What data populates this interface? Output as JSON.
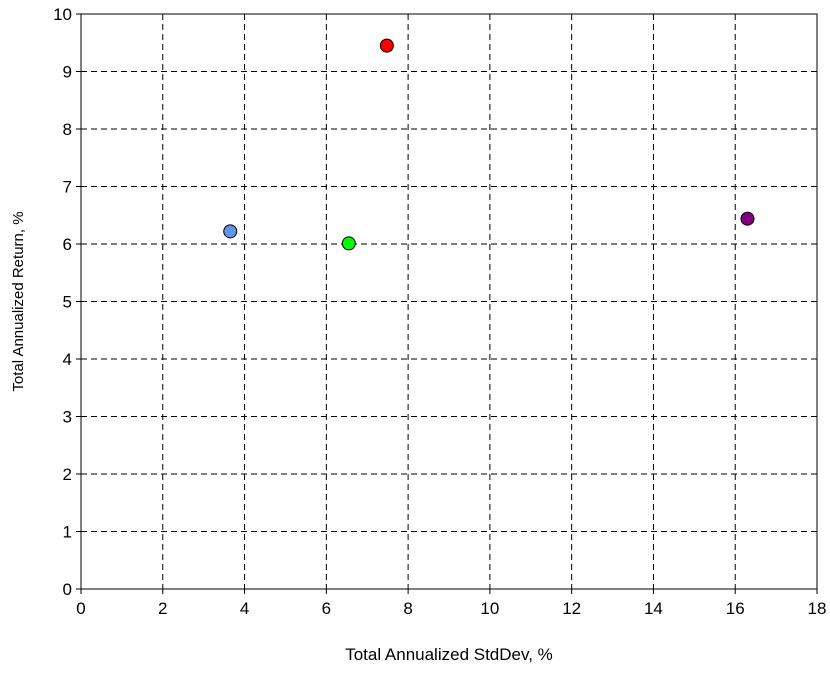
{
  "chart_data": {
    "type": "scatter",
    "title": "",
    "xlabel": "Total Annualized StdDev, %",
    "ylabel": "Total Annualized Return, %",
    "xlim": [
      0,
      18
    ],
    "ylim": [
      0,
      10
    ],
    "x_ticks": [
      0,
      2,
      4,
      6,
      8,
      10,
      12,
      14,
      16,
      18
    ],
    "y_ticks": [
      0,
      1,
      2,
      3,
      4,
      5,
      6,
      7,
      8,
      9,
      10
    ],
    "grid": true,
    "grid_style": "dashed",
    "legend": "none",
    "points": [
      {
        "x": 3.65,
        "y": 6.22,
        "color": "#6495ED"
      },
      {
        "x": 6.55,
        "y": 6.01,
        "color": "#00FF00"
      },
      {
        "x": 7.48,
        "y": 9.45,
        "color": "#FF0000"
      },
      {
        "x": 16.3,
        "y": 6.44,
        "color": "#800080"
      }
    ]
  }
}
